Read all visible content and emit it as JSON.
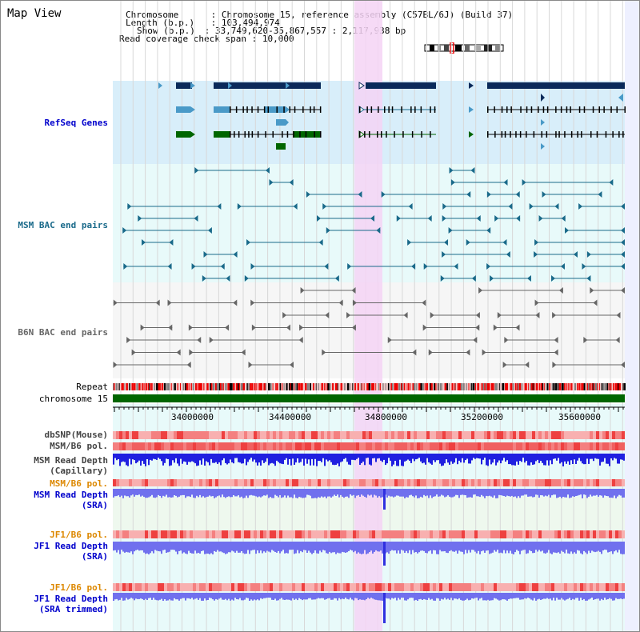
{
  "map_title": "Map View",
  "header": {
    "chromosome_label": "Chromosome",
    "chromosome_value": "Chromosome 15, reference assembly (C57BL/6J) (Build 37)",
    "length_label": "Length (b.p.)",
    "length_value": "103,494,974",
    "show_label": "Show (b.p.)",
    "show_value": "33,749,620-35,867,557 : 2,117,938 bp",
    "coverage_label": "Read coverage check span",
    "coverage_value": "10,000"
  },
  "tracks": {
    "refseq": "RefSeq Genes",
    "msm_bac": "MSM BAC end pairs",
    "b6n_bac": "B6N BAC end pairs",
    "repeat": "Repeat",
    "chromosome": "chromosome 15",
    "dbsnp": "dbSNP(Mouse)",
    "msm_b6_pol": "MSM/B6 pol.",
    "msm_read_depth_cap_1": "MSM Read Depth",
    "msm_read_depth_cap_2": "(Capillary)",
    "msm_b6_pol_2": "MSM/B6 pol.",
    "msm_read_depth_sra_1": "MSM Read Depth",
    "msm_read_depth_sra_2": "(SRA)",
    "jf1_b6_pol": "JF1/B6 pol.",
    "jf1_read_depth_sra_1": "JF1 Read Depth",
    "jf1_read_depth_sra_2": "(SRA)",
    "jf1_b6_pol_2": "JF1/B6 pol.",
    "jf1_read_depth_trim_1": "JF1 Read Depth",
    "jf1_read_depth_trim_2": "(SRA trimmed)"
  },
  "axis_ticks": [
    "34000000",
    "34400000",
    "34800000",
    "35200000",
    "35600000"
  ],
  "colors": {
    "refseq_bg": "#d8eefa",
    "bac_bg": "#e8fafa",
    "b6n_bg": "#f6f6f6",
    "highlight": "#f4d4f4",
    "gene_dark": "#0a2a5a",
    "gene_light": "#4a9ac8",
    "gene_green": "#006600",
    "msm_bac": "#1a6a8a",
    "b6n_bac": "#666666",
    "chromosome_bar": "#006600",
    "depth_blue": "#2020e0",
    "depth_light": "#7070ee",
    "label_blue": "#0000cc",
    "label_orange": "#dd8800",
    "label_gray": "#444444"
  }
}
